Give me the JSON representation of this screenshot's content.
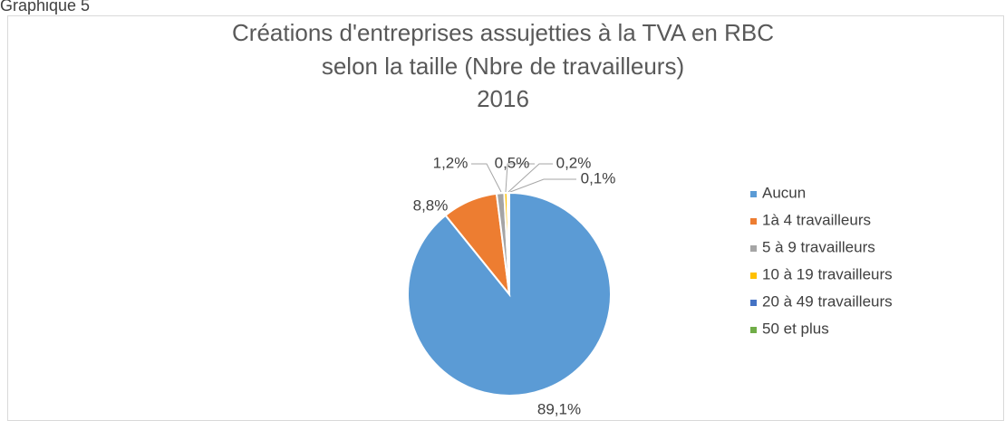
{
  "page_label": "Graphique 5",
  "chart_data": {
    "type": "pie",
    "title": [
      "Créations d'entreprises assujetties à la TVA en RBC",
      "selon la taille (Nbre de travailleurs)",
      "2016"
    ],
    "categories": [
      "Aucun",
      "1à 4 travailleurs",
      "5 à 9 travailleurs",
      "10 à 19 travailleurs",
      "20 à 49 travailleurs",
      "50 et plus"
    ],
    "values": [
      89.1,
      8.8,
      1.2,
      0.5,
      0.2,
      0.1
    ],
    "value_labels": [
      "89,1%",
      "8,8%",
      "1,2%",
      "0,5%",
      "0,2%",
      "0,1%"
    ],
    "colors": [
      "#5b9bd5",
      "#ed7d31",
      "#a5a5a5",
      "#ffc000",
      "#4472c4",
      "#70ad47"
    ],
    "legend": "right"
  }
}
